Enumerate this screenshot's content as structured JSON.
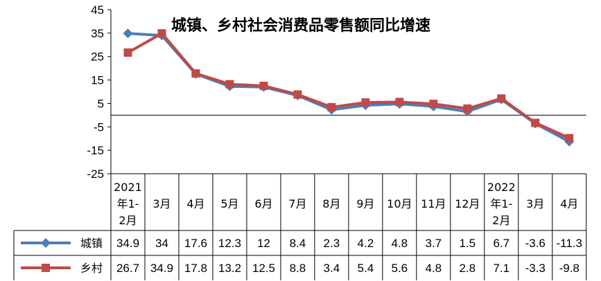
{
  "chart_data": {
    "type": "line",
    "title": "城镇、乡村社会消费品零售额同比增速",
    "categories": [
      [
        "2021",
        "年1-",
        "2月"
      ],
      [
        "3月"
      ],
      [
        "4月"
      ],
      [
        "5月"
      ],
      [
        "6月"
      ],
      [
        "7月"
      ],
      [
        "8月"
      ],
      [
        "9月"
      ],
      [
        "10月"
      ],
      [
        "11月"
      ],
      [
        "12月"
      ],
      [
        "2022",
        "年1-",
        "2月"
      ],
      [
        "3月"
      ],
      [
        "4月"
      ]
    ],
    "series": [
      {
        "name": "城镇",
        "color": "#4A7EBB",
        "marker": "diamond",
        "values": [
          34.9,
          34,
          17.6,
          12.3,
          12,
          8.4,
          2.3,
          4.2,
          4.8,
          3.7,
          1.5,
          6.7,
          -3.6,
          -11.3
        ],
        "labels": [
          "34.9",
          "34",
          "17.6",
          "12.3",
          "12",
          "8.4",
          "2.3",
          "4.2",
          "4.8",
          "3.7",
          "1.5",
          "6.7",
          "-3.6",
          "-11.3"
        ]
      },
      {
        "name": "乡村",
        "color": "#BE4B48",
        "marker": "square",
        "values": [
          26.7,
          34.9,
          17.8,
          13.2,
          12.5,
          8.8,
          3.4,
          5.4,
          5.6,
          4.8,
          2.8,
          7.1,
          -3.3,
          -9.8
        ],
        "labels": [
          "26.7",
          "34.9",
          "17.8",
          "13.2",
          "12.5",
          "8.8",
          "3.4",
          "5.4",
          "5.6",
          "4.8",
          "2.8",
          "7.1",
          "-3.3",
          "-9.8"
        ]
      }
    ],
    "yticks": [
      "45",
      "35",
      "25",
      "15",
      "5",
      "-5",
      "-15",
      "-25"
    ],
    "ylim": [
      -25,
      45
    ],
    "grid": false,
    "legend": "data-table"
  }
}
